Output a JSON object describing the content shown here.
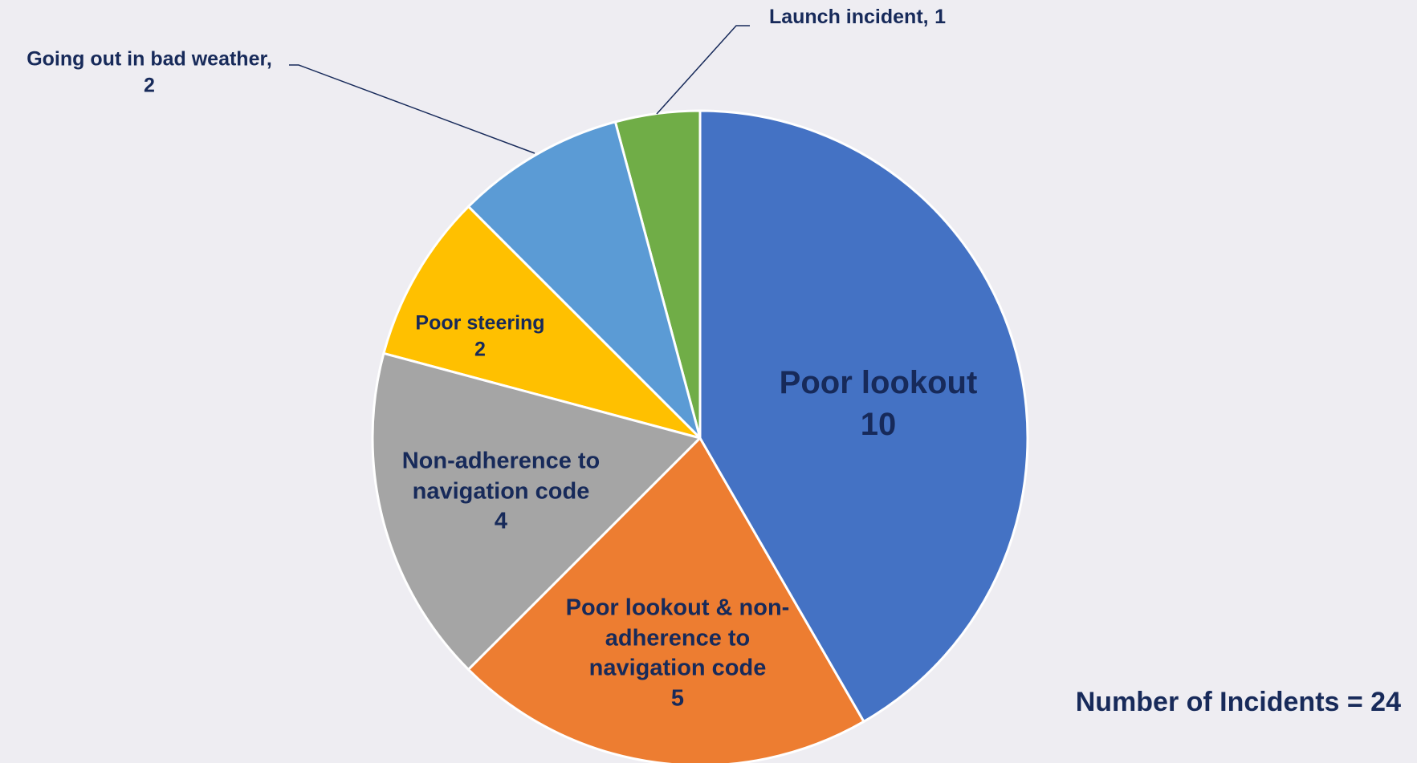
{
  "chart_data": {
    "type": "pie",
    "categories": [
      "Poor lookout",
      "Poor lookout & non-adherence to navigation code",
      "Non-adherence to navigation code",
      "Poor steering",
      "Going out in bad weather",
      "Launch incident"
    ],
    "values": [
      10,
      5,
      4,
      2,
      2,
      1
    ],
    "colors": [
      "#4472c4",
      "#ed7d31",
      "#a5a5a5",
      "#ffc000",
      "#5b9bd5",
      "#70ad47"
    ],
    "annotation": "Number of Incidents = 24"
  }
}
